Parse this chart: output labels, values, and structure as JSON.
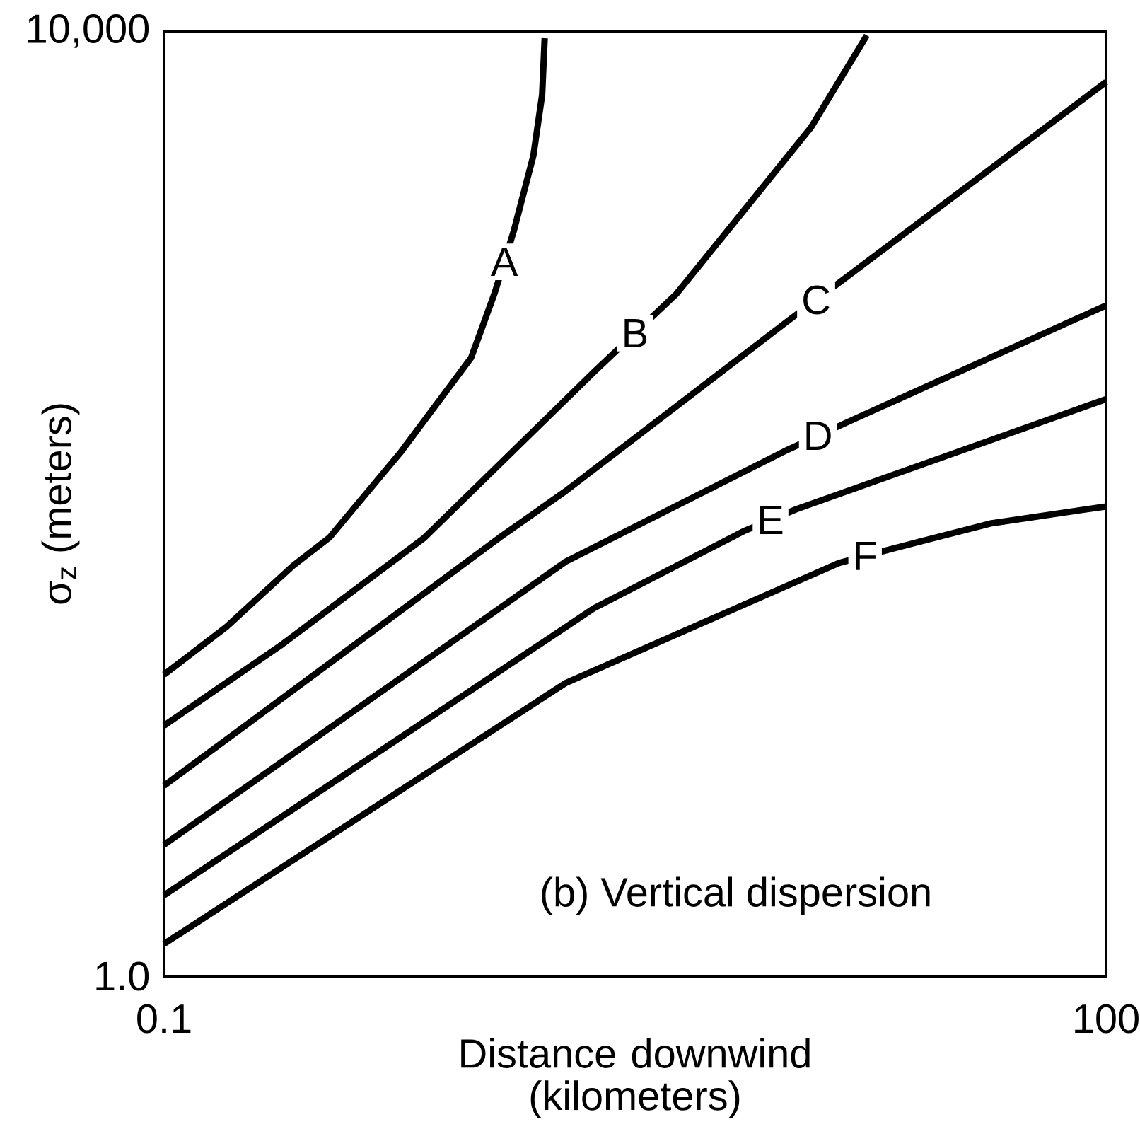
{
  "chart_data": {
    "type": "line",
    "xlabel": "Distance downwind (kilometers)",
    "ylabel": "σ$_{z}$ (meters)",
    "log": "xy",
    "xlim": [
      0.1,
      100
    ],
    "ylim": [
      1,
      10000
    ],
    "xticks": [
      0.1,
      100
    ],
    "yticks": [
      {
        "value": 1,
        "label": "1.0"
      },
      {
        "value": 10000,
        "label": "10,000"
      }
    ],
    "marker": "none",
    "line_style": "solid",
    "annotations": [
      "(b) Vertical dispersion"
    ],
    "series": [
      {
        "name": "A",
        "color": "#000000",
        "x": [
          0.1,
          0.158,
          0.257,
          0.336,
          0.565,
          0.95,
          1.13,
          1.3,
          1.5,
          1.6,
          1.63
        ],
        "values": [
          18.9,
          30.1,
          54.5,
          71.8,
          164,
          414,
          780,
          1430,
          2970,
          5380,
          9330
        ]
      },
      {
        "name": "B",
        "color": "#000000",
        "x": [
          0.1,
          0.239,
          0.675,
          2.34,
          4.27,
          7.55,
          11.5,
          17.3
        ],
        "values": [
          11.5,
          25.5,
          71.8,
          361,
          769,
          1960,
          3920,
          9590
        ]
      },
      {
        "name": "C",
        "color": "#000000",
        "x": [
          0.1,
          1.17,
          1.9,
          9.68,
          14.7,
          100
        ],
        "values": [
          6.4,
          71.8,
          113,
          592,
          896,
          6090
        ]
      },
      {
        "name": "D",
        "color": "#000000",
        "x": [
          0.1,
          1.9,
          9.68,
          15.1,
          100
        ],
        "values": [
          3.6,
          56.8,
          169,
          222,
          690
        ]
      },
      {
        "name": "E",
        "color": "#000000",
        "x": [
          0.1,
          2.34,
          7.08,
          10.3,
          100
        ],
        "values": [
          2.2,
          36.1,
          76.9,
          94.6,
          277
        ]
      },
      {
        "name": "F",
        "color": "#000000",
        "x": [
          0.1,
          1.9,
          14.1,
          20.7,
          42.8,
          100
        ],
        "values": [
          1.37,
          17.4,
          56.1,
          64.3,
          82.4,
          97.3
        ]
      }
    ]
  }
}
